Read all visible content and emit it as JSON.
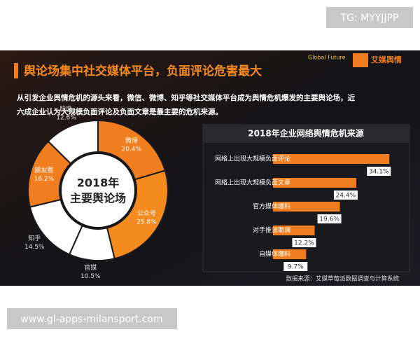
{
  "watermark": "TG: MYYJJPP",
  "footer_url": "www.gl-apps-milansport.com",
  "header": {
    "title": "舆论场集中社交媒体平台，负面评论危害最大",
    "logo_left": "Global Future",
    "logo_right": "艾媒舆情"
  },
  "intro": [
    "从引发企业舆情危机的源头来看，微信、微博、知乎等社交媒体平台成为舆情危机爆发的主要舆论场，近",
    "六成企业认为大规模负面评论及负面文章是最主要的危机来源。"
  ],
  "source": "数据来源：艾媒草莓派数据调查与计算系统",
  "chart_data": [
    {
      "type": "donut",
      "title": [
        "2018年",
        "主要舆论场"
      ],
      "categories": [
        "微博",
        "公众号",
        "官媒",
        "知乎",
        "朋友圈",
        "脉脉"
      ],
      "values": [
        20.4,
        25.8,
        10.5,
        14.5,
        16.2,
        12.6
      ],
      "value_labels": [
        "20.4%",
        "25.8%",
        "10.5%",
        "14.5%",
        "16.2%",
        "12.6%"
      ],
      "colors": [
        "#f07d1e",
        "#f58a1f",
        "#ffffff",
        "#ffffff",
        "#f07d1e",
        "#ffffff"
      ]
    },
    {
      "type": "hbar",
      "title": "2018年企业网络舆情危机来源",
      "categories": [
        "网络上出现大规模负面评论",
        "网络上出现大规模负面文章",
        "官方媒体爆料",
        "对手推波助澜",
        "自媒体爆料"
      ],
      "values": [
        34.1,
        24.4,
        19.6,
        12.2,
        9.7
      ],
      "value_labels": [
        "34.1%",
        "24.4%",
        "19.6%",
        "12.2%",
        "9.7%"
      ],
      "color": "#f07d1e",
      "xlim": [
        0,
        40
      ]
    }
  ]
}
